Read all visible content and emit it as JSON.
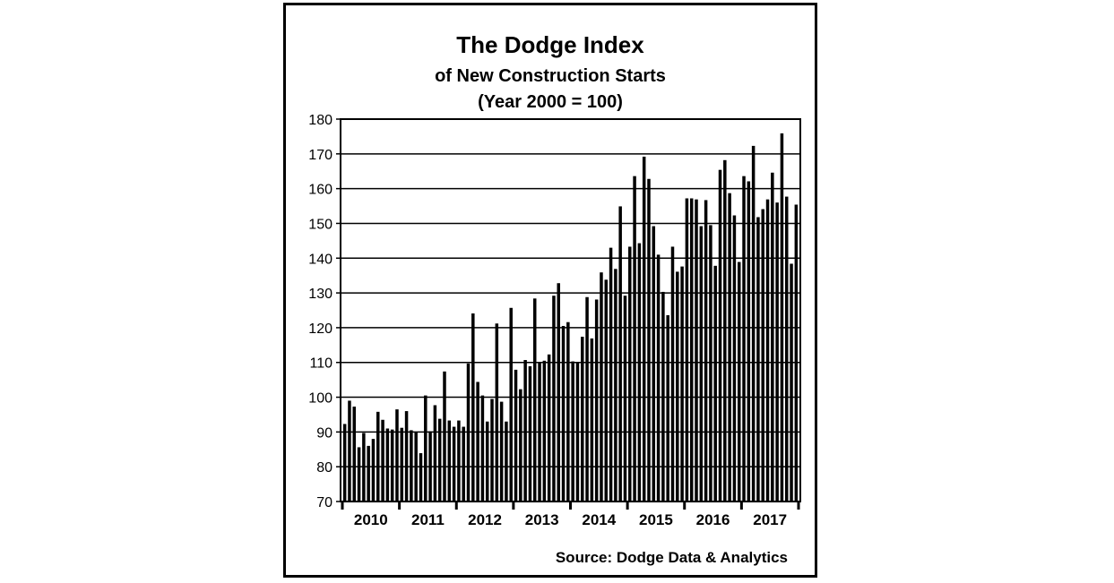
{
  "title": "The Dodge Index",
  "subtitle": "of New Construction Starts",
  "subtitle2": "(Year 2000 = 100)",
  "source": "Source:  Dodge Data & Analytics",
  "chart_data": {
    "type": "bar",
    "title": "The Dodge Index of New Construction Starts (Year 2000 = 100)",
    "xlabel": "",
    "ylabel": "",
    "ylim": [
      70,
      180
    ],
    "yticks": [
      70,
      80,
      90,
      100,
      110,
      120,
      130,
      140,
      150,
      160,
      170,
      180
    ],
    "xticks": [
      "2010",
      "2011",
      "2012",
      "2013",
      "2014",
      "2015",
      "2016",
      "2017"
    ],
    "grid": "horizontal",
    "bar_color": "#000000",
    "frequency": "monthly",
    "start": "2010-01",
    "values": [
      92.3,
      99.0,
      97.3,
      85.6,
      89.7,
      86.0,
      88.0,
      95.8,
      93.5,
      91.0,
      90.7,
      96.5,
      91.2,
      96.0,
      90.5,
      90.0,
      83.9,
      100.5,
      90.2,
      97.7,
      93.8,
      107.4,
      93.3,
      91.5,
      93.3,
      91.5,
      109.7,
      124.1,
      104.4,
      100.5,
      93.0,
      99.5,
      121.2,
      98.7,
      93.0,
      125.7,
      107.9,
      102.3,
      110.7,
      108.9,
      128.4,
      110.0,
      110.5,
      112.3,
      129.2,
      132.8,
      120.5,
      121.6,
      110.3,
      109.8,
      117.4,
      128.8,
      116.9,
      128.1,
      135.9,
      133.8,
      143.0,
      136.9,
      154.9,
      129.2,
      143.3,
      163.6,
      144.3,
      169.2,
      162.8,
      149.2,
      141.0,
      130.3,
      123.6,
      143.3,
      136.1,
      137.6,
      157.2,
      157.2,
      156.9,
      149.2,
      156.7,
      149.5,
      137.8,
      165.4,
      168.2,
      158.7,
      152.3,
      138.9,
      163.6,
      162.1,
      172.3,
      151.8,
      154.1,
      156.9,
      164.6,
      156.0,
      175.9,
      157.7,
      138.4,
      155.4
    ]
  }
}
